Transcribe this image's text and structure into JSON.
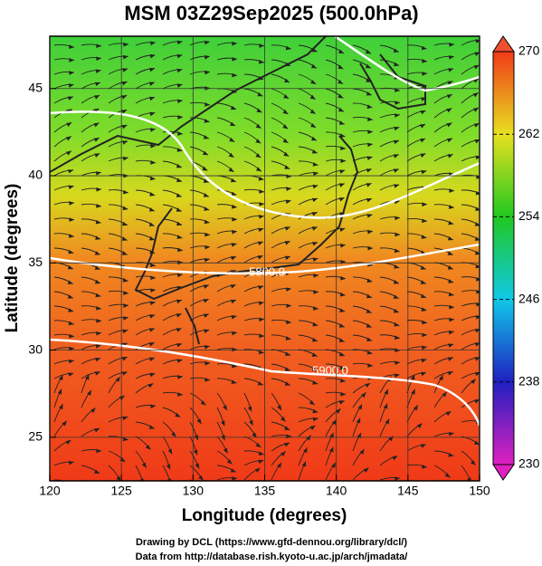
{
  "chart_data": {
    "type": "map",
    "title": "MSM 03Z29Sep2025 (500.0hPa)",
    "xlabel": "Longitude (degrees)",
    "ylabel": "Latitude  (degrees)",
    "xlim": [
      120,
      150
    ],
    "ylim": [
      22.5,
      48
    ],
    "xticks": [
      120,
      125,
      130,
      135,
      140,
      145,
      150
    ],
    "yticks": [
      25,
      30,
      35,
      40,
      45
    ],
    "colorbar": {
      "lim": [
        230,
        270
      ],
      "ticks": [
        230,
        238,
        246,
        254,
        262,
        270
      ]
    },
    "contour_labels": [
      "5800.0",
      "5900.0"
    ],
    "footer": [
      "Drawing by DCL (https://www.gfd-dennou.org/library/dcl/)",
      "Data from http://database.rish.kyoto-u.ac.jp/arch/jmadata/"
    ]
  }
}
